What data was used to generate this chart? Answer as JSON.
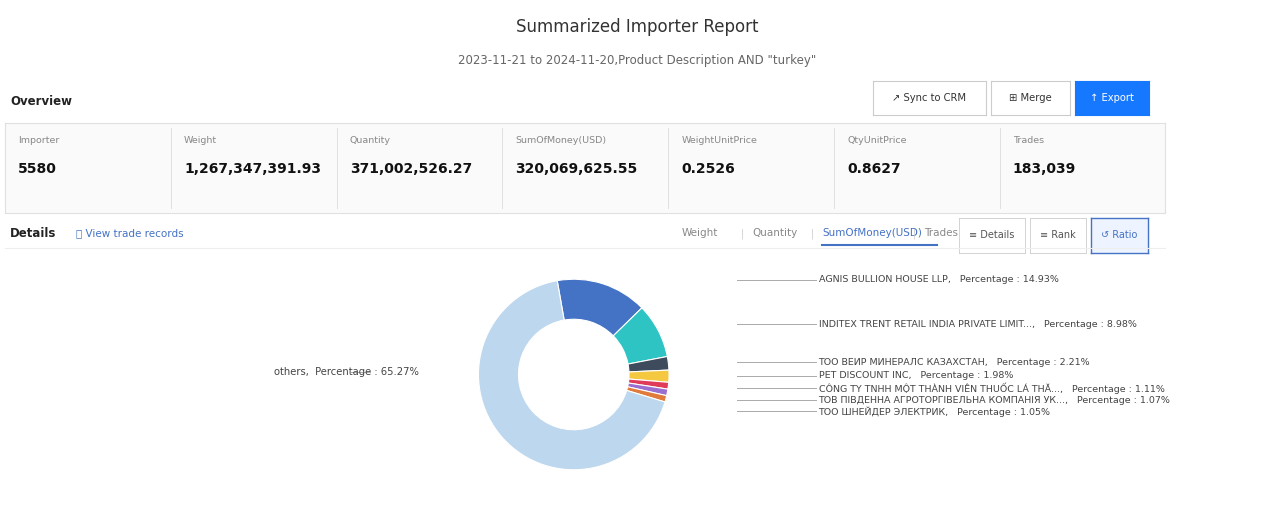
{
  "title": "Summarized Importer Report",
  "subtitle": "2023-11-21 to 2024-11-20,Product Description AND \"turkey\"",
  "overview_label": "Overview",
  "details_label": "Details",
  "stats": [
    {
      "label": "Importer",
      "value": "5580"
    },
    {
      "label": "Weight",
      "value": "1,267,347,391.93"
    },
    {
      "label": "Quantity",
      "value": "371,002,526.27"
    },
    {
      "label": "SumOfMoney(USD)",
      "value": "320,069,625.55"
    },
    {
      "label": "WeightUnitPrice",
      "value": "0.2526"
    },
    {
      "label": "QtyUnitPrice",
      "value": "0.8627"
    },
    {
      "label": "Trades",
      "value": "183,039"
    }
  ],
  "tab_labels": [
    "Weight",
    "Quantity",
    "SumOfMoney(USD)",
    "Trades"
  ],
  "active_tab": "SumOfMoney(USD)",
  "button_labels": [
    "Details",
    "Rank",
    "Ratio"
  ],
  "active_button": "Ratio",
  "segments": [
    {
      "label": "AGNIS BULLION HOUSE LLP,",
      "percentage": 14.93,
      "color": "#4472C4"
    },
    {
      "label": "INDITEX TRENT RETAIL INDIA PRIVATE LIMIT...,",
      "percentage": 8.98,
      "color": "#2EC4C4"
    },
    {
      "label": "ТОО ВЕИР МИНЕРАЛС КАЗАХСТАН,",
      "percentage": 2.21,
      "color": "#3D4B5C"
    },
    {
      "label": "PET DISCOUNT INC,",
      "percentage": 1.98,
      "color": "#F5C842"
    },
    {
      "label": "CÔNG TY TNHH MỘT THÀNH VIÊN THUỐC LÁ THĂ...,",
      "percentage": 1.11,
      "color": "#E03C5A"
    },
    {
      "label": "ТОВ ПІВДЕННА АГРОТОРГІВЕЛЬНА КОМПАНІЯ УК...,",
      "percentage": 1.07,
      "color": "#9B6FD0"
    },
    {
      "label": "ТОО ШНЕЙДЕР ЭЛЕКТРИК,",
      "percentage": 1.05,
      "color": "#E07B3C"
    },
    {
      "label": "others,",
      "percentage": 65.27,
      "color": "#BDD7EE"
    }
  ],
  "others_label": "others,  Percentage : 65.27%",
  "background_color": "#FFFFFF",
  "sync_crm_label": "Sync to CRM",
  "merge_label": "Merge",
  "export_label": "Export",
  "view_trade_label": "View trade records"
}
